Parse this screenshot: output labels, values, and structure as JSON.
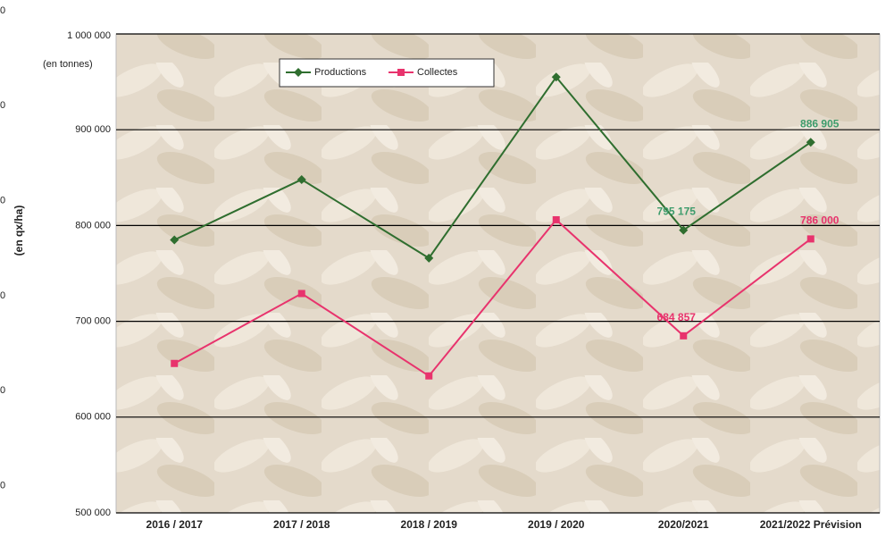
{
  "chart_data": {
    "type": "line",
    "unit_note": "(en tonnes)",
    "y2label": "(en qx/ha)",
    "y2_tick_texts": [
      "0",
      "0",
      "0",
      "0",
      "0",
      "0"
    ],
    "categories": [
      "2016 / 2017",
      "2017 / 2018",
      "2018 / 2019",
      "2019 / 2020",
      "2020/2021",
      "2021/2022 Prévision"
    ],
    "series": [
      {
        "name": "Productions",
        "color": "#2f6e2f",
        "marker": "diamond",
        "label_color": "#3d9c6c",
        "values": [
          785000,
          848000,
          766000,
          955000,
          795175,
          886905
        ],
        "value_labels": [
          null,
          null,
          null,
          null,
          "795 175",
          "886 905"
        ]
      },
      {
        "name": "Collectes",
        "color": "#e8336d",
        "marker": "square",
        "label_color": "#e8336d",
        "values": [
          656000,
          729000,
          643000,
          806000,
          684857,
          786000
        ],
        "value_labels": [
          null,
          null,
          null,
          null,
          "684 857",
          "786 000"
        ]
      }
    ],
    "ylim": [
      500000,
      1000000
    ],
    "yticks": [
      {
        "value": 500000,
        "label": "500 000"
      },
      {
        "value": 600000,
        "label": "600 000"
      },
      {
        "value": 700000,
        "label": "700 000"
      },
      {
        "value": 800000,
        "label": "800 000"
      },
      {
        "value": 900000,
        "label": "900 000"
      },
      {
        "value": 1000000,
        "label": "1 000 000"
      }
    ],
    "grid": true
  }
}
